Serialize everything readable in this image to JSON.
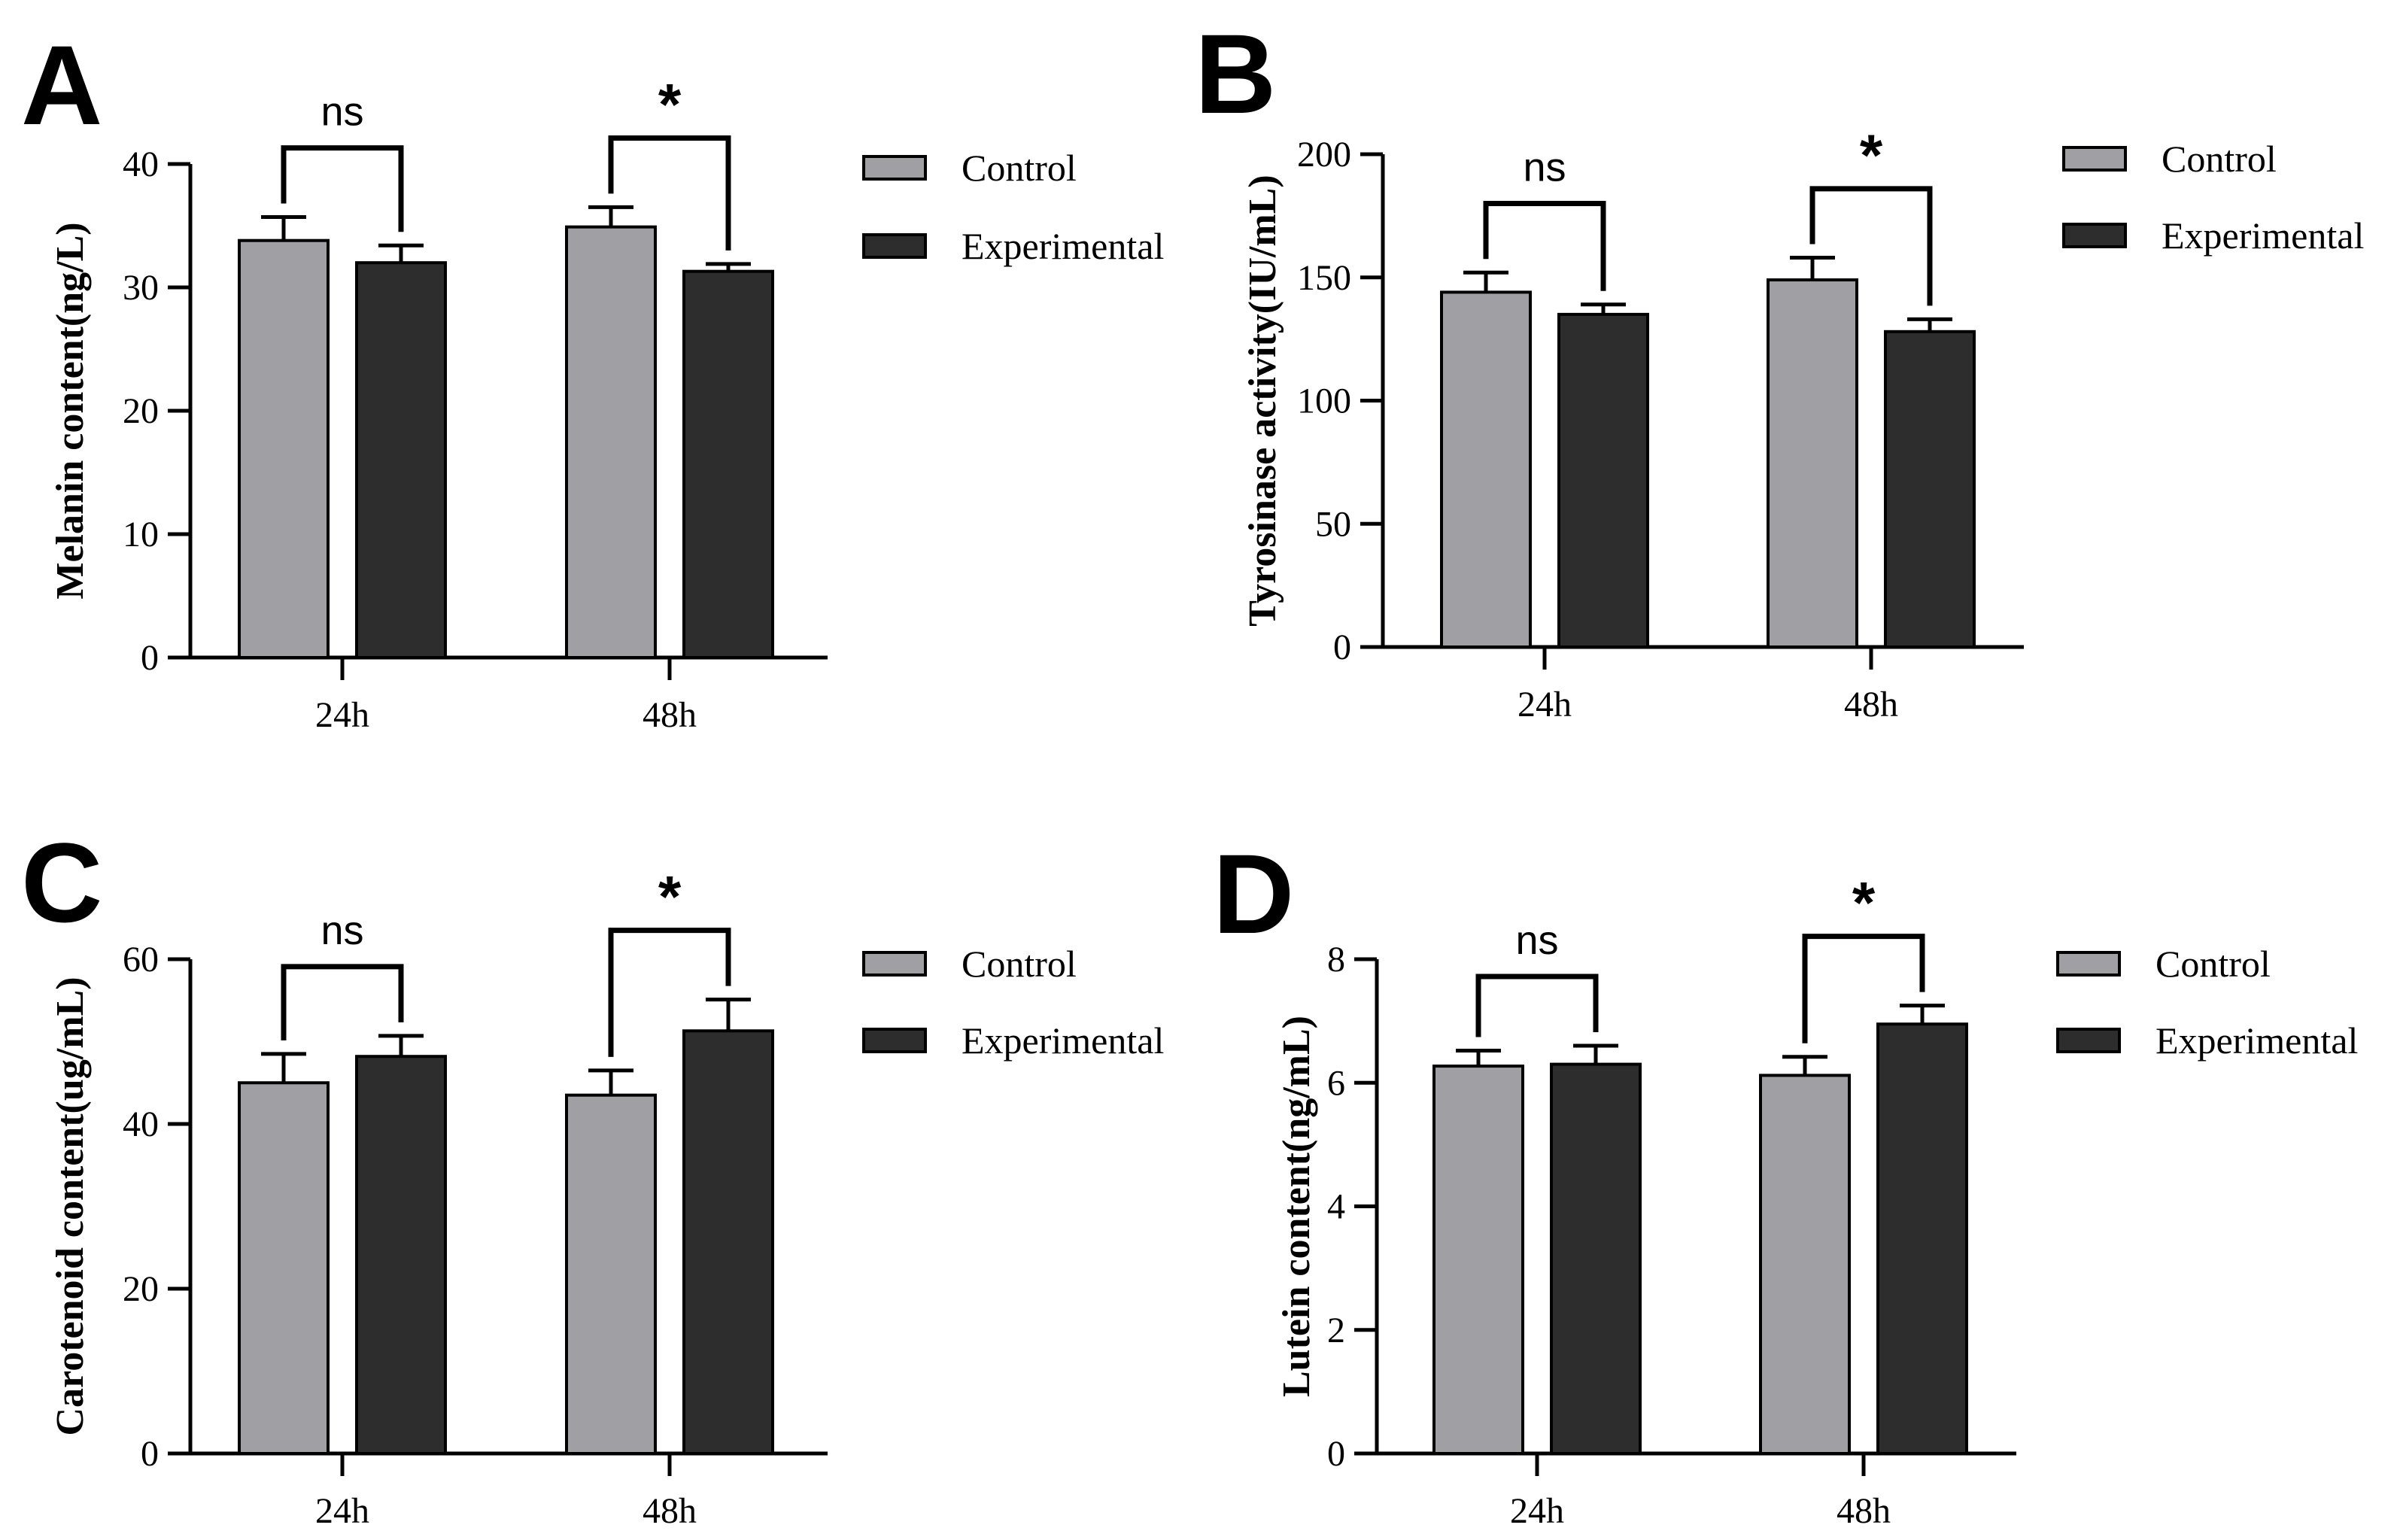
{
  "colors": {
    "control": "#a09fa4",
    "experimental": "#2d2d2d",
    "axis": "#000000"
  },
  "chart_data": [
    {
      "type": "bar",
      "panel": "A",
      "ylabel": "Melanin content(ng/L)",
      "categories": [
        "24h",
        "48h"
      ],
      "ylim": [
        0,
        40
      ],
      "yticks": [
        0,
        10,
        20,
        30,
        40
      ],
      "series": [
        {
          "name": "Control",
          "values": [
            33.8,
            34.9
          ],
          "errors": [
            1.9,
            1.6
          ]
        },
        {
          "name": "Experimental",
          "values": [
            32.0,
            31.3
          ],
          "errors": [
            1.4,
            0.6
          ]
        }
      ],
      "significance": [
        "ns",
        "*"
      ]
    },
    {
      "type": "bar",
      "panel": "B",
      "ylabel": "Tyrosinase activity(IU/mL)",
      "categories": [
        "24h",
        "48h"
      ],
      "ylim": [
        0,
        200
      ],
      "yticks": [
        0,
        50,
        100,
        150,
        200
      ],
      "series": [
        {
          "name": "Control",
          "values": [
            144,
            149
          ],
          "errors": [
            8,
            9
          ]
        },
        {
          "name": "Experimental",
          "values": [
            135,
            128
          ],
          "errors": [
            4,
            5
          ]
        }
      ],
      "significance": [
        "ns",
        "*"
      ]
    },
    {
      "type": "bar",
      "panel": "C",
      "ylabel": "Carotenoid content(ug/mL)",
      "categories": [
        "24h",
        "48h"
      ],
      "ylim": [
        0,
        60
      ],
      "yticks": [
        0,
        20,
        40,
        60
      ],
      "series": [
        {
          "name": "Control",
          "values": [
            45.0,
            43.5
          ],
          "errors": [
            3.5,
            3.0
          ]
        },
        {
          "name": "Experimental",
          "values": [
            48.2,
            51.3
          ],
          "errors": [
            2.5,
            3.8
          ]
        }
      ],
      "significance": [
        "ns",
        "*"
      ]
    },
    {
      "type": "bar",
      "panel": "D",
      "ylabel": "Lutein content(ng/mL)",
      "categories": [
        "24h",
        "48h"
      ],
      "ylim": [
        0,
        8
      ],
      "yticks": [
        0,
        2,
        4,
        6,
        8
      ],
      "series": [
        {
          "name": "Control",
          "values": [
            6.27,
            6.12
          ],
          "errors": [
            0.25,
            0.3
          ]
        },
        {
          "name": "Experimental",
          "values": [
            6.3,
            6.95
          ],
          "errors": [
            0.3,
            0.3
          ]
        }
      ],
      "significance": [
        "ns",
        "*"
      ]
    }
  ]
}
